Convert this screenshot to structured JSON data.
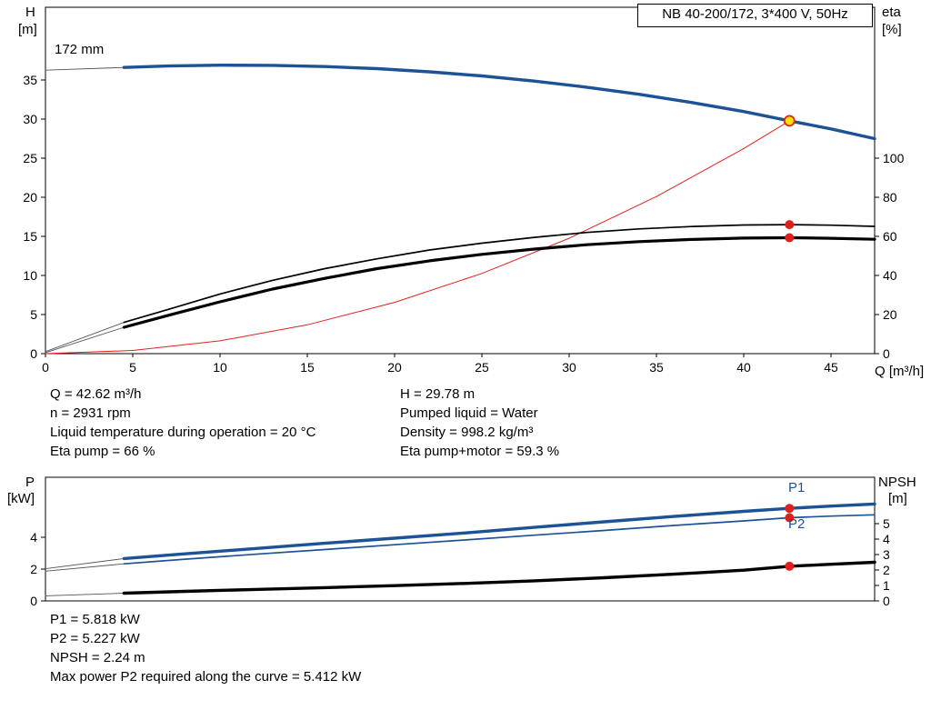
{
  "title_box": "NB 40-200/172, 3*400 V, 50Hz",
  "labels": {
    "h_axis": "H",
    "h_unit": "[m]",
    "eta_axis": "eta",
    "eta_unit": "[%]",
    "q_axis": "Q [m³/h]",
    "p_axis": "P",
    "p_unit": "[kW]",
    "npsh_axis": "NPSH",
    "npsh_unit": "[m]",
    "p1": "P1",
    "p2": "P2",
    "impeller": "172 mm"
  },
  "info_top": {
    "left": [
      "Q = 42.62 m³/h",
      "n = 2931 rpm",
      "Liquid temperature during operation = 20 °C",
      "Eta pump = 66 %"
    ],
    "right": [
      "H = 29.78 m",
      "Pumped liquid = Water",
      "Density = 998.2 kg/m³",
      "Eta pump+motor = 59.3 %"
    ]
  },
  "info_bottom": [
    "P1 = 5.818 kW",
    "P2 = 5.227 kW",
    "NPSH = 2.24 m",
    "Max power P2 required along the curve = 5.412 kW"
  ],
  "colors": {
    "curve_blue": "#1c5296",
    "curve_black": "#000000",
    "system_red": "#e02020",
    "marker_red": "#e02020",
    "duty_yellow": "#ffe000"
  },
  "duty_point": {
    "q_m3h": 42.62,
    "h_m": 29.78,
    "eta_pump_pct": 66,
    "eta_pump_motor_pct": 59.3,
    "p1_kw": 5.818,
    "p2_kw": 5.227,
    "npsh_m": 2.24,
    "speed_rpm": 2931,
    "max_p2_kw": 5.412
  },
  "chart_data": [
    {
      "type": "line",
      "name": "qh-chart",
      "title": "NB 40-200/172, 3*400 V, 50Hz",
      "xlabel": "Q [m³/h]",
      "ylabel_left": "H [m]",
      "ylabel_right": "eta [%]",
      "xlim": [
        0,
        47.5
      ],
      "x_ticks": [
        0,
        5,
        10,
        15,
        20,
        25,
        30,
        35,
        40,
        45
      ],
      "show_x_tick_labels": true,
      "ylim_left": [
        0,
        44.3
      ],
      "y_ticks_left": [
        0,
        5,
        10,
        15,
        20,
        25,
        30,
        35
      ],
      "ylim_right": [
        0,
        177.2
      ],
      "y_ticks_right": [
        0,
        20,
        40,
        60,
        80,
        100
      ],
      "grid": false,
      "legend_position": "none",
      "series": [
        {
          "name": "system-curve",
          "axis": "left",
          "color": "#e02020",
          "width": 1,
          "points": [
            [
              0,
              0
            ],
            [
              5,
              0.41
            ],
            [
              10,
              1.64
            ],
            [
              15,
              3.69
            ],
            [
              20,
              6.56
            ],
            [
              25,
              10.25
            ],
            [
              30,
              14.76
            ],
            [
              35,
              20.09
            ],
            [
              40,
              26.23
            ],
            [
              42.62,
              29.78
            ]
          ]
        },
        {
          "name": "pump-curve-extension",
          "axis": "left",
          "color": "#555555",
          "width": 0.9,
          "points": [
            [
              0,
              36.25
            ],
            [
              4.5,
              36.6
            ]
          ]
        },
        {
          "name": "eta-pump-extension",
          "axis": "right",
          "color": "#555555",
          "width": 0.9,
          "points": [
            [
              0,
              1
            ],
            [
              4.5,
              16
            ]
          ]
        },
        {
          "name": "eta-pump-motor-extension",
          "axis": "right",
          "color": "#555555",
          "width": 0.9,
          "points": [
            [
              0,
              0.5
            ],
            [
              4.5,
              13.5
            ]
          ]
        },
        {
          "name": "eta-pump-curve",
          "axis": "right",
          "color": "#000000",
          "width": 1.7,
          "points": [
            [
              4.5,
              16
            ],
            [
              7,
              22.5
            ],
            [
              10,
              30.5
            ],
            [
              13,
              37.5
            ],
            [
              16,
              43.5
            ],
            [
              19,
              48.5
            ],
            [
              22,
              53
            ],
            [
              25,
              56.5
            ],
            [
              28,
              59.5
            ],
            [
              31,
              62
            ],
            [
              34,
              63.8
            ],
            [
              37,
              65
            ],
            [
              40,
              65.8
            ],
            [
              42.62,
              66
            ],
            [
              45,
              65.7
            ],
            [
              47.5,
              65.1
            ]
          ]
        },
        {
          "name": "eta-pump-motor-curve",
          "axis": "right",
          "color": "#000000",
          "width": 3.2,
          "points": [
            [
              4.5,
              13.5
            ],
            [
              7,
              19.5
            ],
            [
              10,
              26.5
            ],
            [
              13,
              33
            ],
            [
              16,
              38.5
            ],
            [
              19,
              43.5
            ],
            [
              22,
              47.5
            ],
            [
              25,
              50.8
            ],
            [
              28,
              53.5
            ],
            [
              31,
              55.7
            ],
            [
              34,
              57.3
            ],
            [
              37,
              58.4
            ],
            [
              40,
              59.1
            ],
            [
              42.62,
              59.3
            ],
            [
              45,
              59
            ],
            [
              47.5,
              58.5
            ]
          ]
        },
        {
          "name": "pump-curve-172mm",
          "axis": "left",
          "color": "#1c5296",
          "width": 3.4,
          "points": [
            [
              4.5,
              36.6
            ],
            [
              7,
              36.79
            ],
            [
              10,
              36.89
            ],
            [
              13,
              36.87
            ],
            [
              16,
              36.72
            ],
            [
              19,
              36.45
            ],
            [
              22,
              36.05
            ],
            [
              25,
              35.52
            ],
            [
              28,
              34.86
            ],
            [
              31,
              34.08
            ],
            [
              34,
              33.17
            ],
            [
              37,
              32.13
            ],
            [
              40,
              30.96
            ],
            [
              42.62,
              29.78
            ],
            [
              45,
              28.74
            ],
            [
              47.5,
              27.5
            ]
          ]
        }
      ],
      "markers": [
        {
          "name": "eta-pump-point",
          "axis": "right",
          "q": 42.62,
          "v": 66,
          "fill": "#e02020",
          "stroke": "none",
          "stroke_width": 0,
          "r": 5
        },
        {
          "name": "eta-pump-motor-point",
          "axis": "right",
          "q": 42.62,
          "v": 59.3,
          "fill": "#e02020",
          "stroke": "none",
          "stroke_width": 0,
          "r": 5
        },
        {
          "name": "duty-point",
          "axis": "left",
          "q": 42.62,
          "v": 29.78,
          "fill": "#ffe000",
          "stroke": "#e02020",
          "stroke_width": 1.8,
          "r": 5.5
        }
      ]
    },
    {
      "type": "line",
      "name": "power-npsh-chart",
      "xlabel": "Q [m³/h]",
      "ylabel_left": "P [kW]",
      "ylabel_right": "NPSH [m]",
      "xlim": [
        0,
        47.5
      ],
      "x_ticks": [],
      "show_x_tick_labels": false,
      "ylim_left": [
        0,
        7.77
      ],
      "y_ticks_left": [
        0,
        2,
        4
      ],
      "ylim_right": [
        0,
        8
      ],
      "y_ticks_right": [
        0,
        1,
        2,
        3,
        4,
        5
      ],
      "grid": false,
      "legend_position": "right-inline",
      "series": [
        {
          "name": "p1-extension",
          "axis": "left",
          "color": "#555555",
          "width": 0.9,
          "points": [
            [
              0,
              2.02
            ],
            [
              4.5,
              2.66
            ]
          ]
        },
        {
          "name": "p2-extension",
          "axis": "left",
          "color": "#555555",
          "width": 0.9,
          "points": [
            [
              0,
              1.87
            ],
            [
              4.5,
              2.33
            ]
          ]
        },
        {
          "name": "npsh-extension",
          "axis": "right",
          "color": "#555555",
          "width": 0.9,
          "points": [
            [
              0,
              0.33
            ],
            [
              4.5,
              0.5
            ]
          ]
        },
        {
          "name": "p2-curve",
          "axis": "left",
          "color": "#1c5296",
          "width": 1.7,
          "points": [
            [
              4.5,
              2.33
            ],
            [
              8,
              2.62
            ],
            [
              12,
              2.93
            ],
            [
              16,
              3.23
            ],
            [
              20,
              3.53
            ],
            [
              24,
              3.83
            ],
            [
              28,
              4.13
            ],
            [
              32,
              4.43
            ],
            [
              36,
              4.74
            ],
            [
              40,
              5.03
            ],
            [
              42.62,
              5.227
            ],
            [
              45,
              5.33
            ],
            [
              47.5,
              5.41
            ]
          ]
        },
        {
          "name": "p1-curve",
          "axis": "left",
          "color": "#1c5296",
          "width": 3.4,
          "points": [
            [
              4.5,
              2.66
            ],
            [
              8,
              2.96
            ],
            [
              12,
              3.29
            ],
            [
              16,
              3.62
            ],
            [
              20,
              3.94
            ],
            [
              24,
              4.27
            ],
            [
              28,
              4.62
            ],
            [
              32,
              4.97
            ],
            [
              36,
              5.31
            ],
            [
              40,
              5.63
            ],
            [
              42.62,
              5.818
            ],
            [
              45,
              5.96
            ],
            [
              47.5,
              6.09
            ]
          ]
        },
        {
          "name": "npsh-curve",
          "axis": "right",
          "color": "#000000",
          "width": 3.4,
          "points": [
            [
              4.5,
              0.5
            ],
            [
              8,
              0.62
            ],
            [
              12,
              0.74
            ],
            [
              16,
              0.86
            ],
            [
              20,
              0.99
            ],
            [
              24,
              1.13
            ],
            [
              28,
              1.3
            ],
            [
              32,
              1.5
            ],
            [
              36,
              1.73
            ],
            [
              40,
              1.99
            ],
            [
              42.62,
              2.24
            ],
            [
              45,
              2.37
            ],
            [
              47.5,
              2.5
            ]
          ]
        }
      ],
      "markers": [
        {
          "name": "p1-point",
          "axis": "left",
          "q": 42.62,
          "v": 5.818,
          "fill": "#e02020",
          "stroke": "none",
          "stroke_width": 0,
          "r": 5
        },
        {
          "name": "p2-point",
          "axis": "left",
          "q": 42.62,
          "v": 5.227,
          "fill": "#e02020",
          "stroke": "none",
          "stroke_width": 0,
          "r": 5
        },
        {
          "name": "npsh-point",
          "axis": "right",
          "q": 42.62,
          "v": 2.24,
          "fill": "#e02020",
          "stroke": "none",
          "stroke_width": 0,
          "r": 5
        }
      ]
    }
  ]
}
